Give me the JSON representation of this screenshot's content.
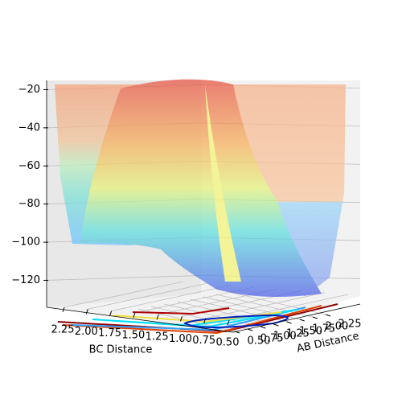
{
  "chart_data": {
    "type": "surface3d",
    "xlabel": "BC Distance",
    "ylabel": "AB Distance",
    "xlim": [
      2.25,
      0.5
    ],
    "xticks": [
      2.25,
      {
        "value": 2,
        "label": "2.00"
      },
      1.75,
      {
        "value": 1.5,
        "label": "1.50"
      },
      1.25,
      {
        "value": 1,
        "label": "1.00"
      },
      0.75,
      {
        "value": 0.5,
        "label": "0.50"
      }
    ],
    "ylim": [
      0.5,
      2.25
    ],
    "yticks": [
      {
        "value": 0.5,
        "label": "0.50"
      },
      0.75,
      {
        "value": 1,
        "label": "1.00"
      },
      1.25,
      {
        "value": 1.5,
        "label": "1.50"
      },
      1.75,
      {
        "value": 2,
        "label": "2.00"
      },
      2.25
    ],
    "zlim": [
      -135,
      -16
    ],
    "zticks": [
      {
        "value": -20,
        "label": "−20"
      },
      {
        "value": -40,
        "label": "−40"
      },
      {
        "value": -60,
        "label": "−60"
      },
      {
        "value": -80,
        "label": "−80"
      },
      {
        "value": -100,
        "label": "−100"
      },
      {
        "value": -120,
        "label": "−120"
      }
    ],
    "grid": true
  }
}
